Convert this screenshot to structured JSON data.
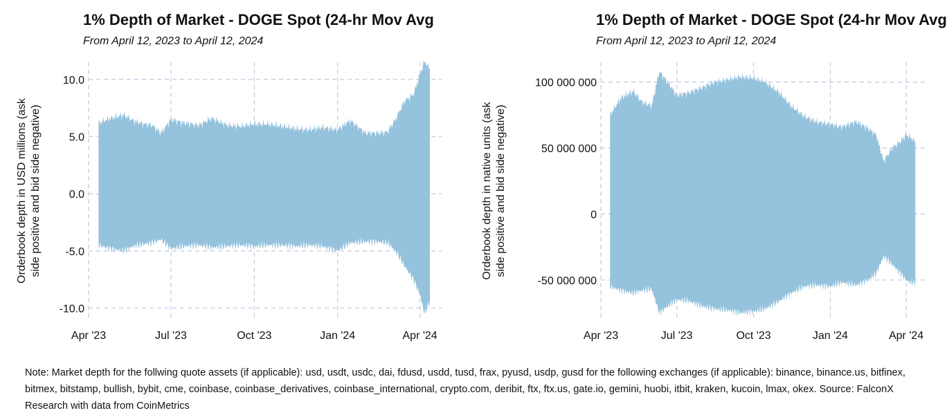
{
  "note": "Note: Market depth for the follwing quote assets (if applicable): usd, usdt, usdc, dai, fdusd, usdd, tusd, frax, pyusd, usdp, gusd for the following exchanges (if applicable): binance, binance.us, bitfinex, bitmex, bitstamp, bullish, bybit, cme, coinbase, coinbase_derivatives, coinbase_international, crypto.com, deribit, ftx, ftx.us, gate.io, gemini, huobi, itbit, kraken, kucoin, lmax, okex. Source: FalconX Research with data from CoinMetrics",
  "colors": {
    "fill": "#95c2dc",
    "grid": "#c8cfe6"
  },
  "chart_data": [
    {
      "type": "area",
      "title": "1% Depth of Market - DOGE Spot (24-hr Mov Avg",
      "subtitle": "From April 12, 2023 to April 12, 2024",
      "ylabel_line1": "Orderbook depth in USD millions (ask",
      "ylabel_line2": "side positive and bid side negative)",
      "xlim": [
        "2023-04-01",
        "2024-04-25"
      ],
      "ylim": [
        -11,
        11.5
      ],
      "x_ticks": [
        {
          "date": "2023-04-01",
          "label": "Apr '23"
        },
        {
          "date": "2023-07-01",
          "label": "Jul '23"
        },
        {
          "date": "2023-10-01",
          "label": "Oct '23"
        },
        {
          "date": "2024-01-01",
          "label": "Jan '24"
        },
        {
          "date": "2024-04-01",
          "label": "Apr '24"
        }
      ],
      "y_ticks": [
        {
          "value": 10,
          "label": "10.0"
        },
        {
          "value": 5,
          "label": "5.0"
        },
        {
          "value": 0,
          "label": "0.0"
        },
        {
          "value": -5,
          "label": "-5.0"
        },
        {
          "value": -10,
          "label": "-10.0"
        }
      ],
      "series": [
        {
          "x": [
            "2023-04-12",
            "2023-04-25",
            "2023-05-10",
            "2023-05-20",
            "2023-06-01",
            "2023-06-10",
            "2023-06-20",
            "2023-07-01",
            "2023-07-15",
            "2023-08-01",
            "2023-08-15",
            "2023-09-01",
            "2023-09-15",
            "2023-10-01",
            "2023-10-15",
            "2023-11-01",
            "2023-11-15",
            "2023-12-01",
            "2023-12-15",
            "2024-01-01",
            "2024-01-15",
            "2024-02-01",
            "2024-02-15",
            "2024-02-25",
            "2024-03-05",
            "2024-03-15",
            "2024-03-25",
            "2024-04-01",
            "2024-04-06",
            "2024-04-12"
          ],
          "ask": [
            6.2,
            6.6,
            6.9,
            6.4,
            6.1,
            6.0,
            5.3,
            6.5,
            6.2,
            6.0,
            6.6,
            6.0,
            5.9,
            6.1,
            6.1,
            5.9,
            5.7,
            5.6,
            5.8,
            5.6,
            6.4,
            5.3,
            5.3,
            5.4,
            6.5,
            8.1,
            8.7,
            10.4,
            11.6,
            10.9
          ],
          "bid": [
            -4.5,
            -4.8,
            -5.0,
            -4.6,
            -4.4,
            -4.3,
            -4.0,
            -4.8,
            -4.6,
            -4.5,
            -4.7,
            -4.6,
            -4.5,
            -4.6,
            -4.5,
            -4.5,
            -4.6,
            -4.5,
            -4.6,
            -5.0,
            -4.3,
            -4.2,
            -4.2,
            -4.3,
            -5.0,
            -6.3,
            -7.5,
            -8.8,
            -10.5,
            -9.4
          ]
        }
      ]
    },
    {
      "type": "area",
      "title": "1% Depth of Market - DOGE Spot (24-hr Mov Avg",
      "subtitle": "From April 12, 2023 to April 12, 2024",
      "ylabel_line1": "Orderbook depth in native units (ask",
      "ylabel_line2": "side positive and bid side negative)",
      "xlim": [
        "2023-04-01",
        "2024-04-25"
      ],
      "ylim": [
        -80000000,
        115000000
      ],
      "x_ticks": [
        {
          "date": "2023-04-01",
          "label": "Apr '23"
        },
        {
          "date": "2023-07-01",
          "label": "Jul '23"
        },
        {
          "date": "2023-10-01",
          "label": "Oct '23"
        },
        {
          "date": "2024-01-01",
          "label": "Jan '24"
        },
        {
          "date": "2024-04-01",
          "label": "Apr '24"
        }
      ],
      "y_ticks": [
        {
          "value": 100000000,
          "label": "100 000 000"
        },
        {
          "value": 50000000,
          "label": "50 000 000"
        },
        {
          "value": 0,
          "label": "0"
        },
        {
          "value": -50000000,
          "label": "-50 000 000"
        }
      ],
      "series": [
        {
          "x": [
            "2023-04-12",
            "2023-04-25",
            "2023-05-10",
            "2023-05-20",
            "2023-06-01",
            "2023-06-10",
            "2023-06-20",
            "2023-07-01",
            "2023-07-15",
            "2023-08-01",
            "2023-08-15",
            "2023-09-01",
            "2023-09-15",
            "2023-10-01",
            "2023-10-15",
            "2023-11-01",
            "2023-11-15",
            "2023-12-01",
            "2023-12-15",
            "2024-01-01",
            "2024-01-15",
            "2024-02-01",
            "2024-02-15",
            "2024-02-25",
            "2024-03-05",
            "2024-03-15",
            "2024-03-25",
            "2024-04-01",
            "2024-04-06",
            "2024-04-12"
          ],
          "ask": [
            75000000,
            88000000,
            93000000,
            85000000,
            82000000,
            108000000,
            100000000,
            90000000,
            92000000,
            96000000,
            100000000,
            102000000,
            104000000,
            103000000,
            100000000,
            92000000,
            82000000,
            74000000,
            70000000,
            68000000,
            66000000,
            70000000,
            65000000,
            60000000,
            40000000,
            50000000,
            55000000,
            60000000,
            58000000,
            55000000
          ],
          "bid": [
            -55000000,
            -58000000,
            -60000000,
            -58000000,
            -57000000,
            -75000000,
            -70000000,
            -65000000,
            -66000000,
            -70000000,
            -72000000,
            -73000000,
            -75000000,
            -74000000,
            -72000000,
            -66000000,
            -60000000,
            -55000000,
            -54000000,
            -55000000,
            -52000000,
            -54000000,
            -50000000,
            -45000000,
            -32000000,
            -38000000,
            -45000000,
            -50000000,
            -52000000,
            -52000000
          ]
        }
      ]
    }
  ]
}
